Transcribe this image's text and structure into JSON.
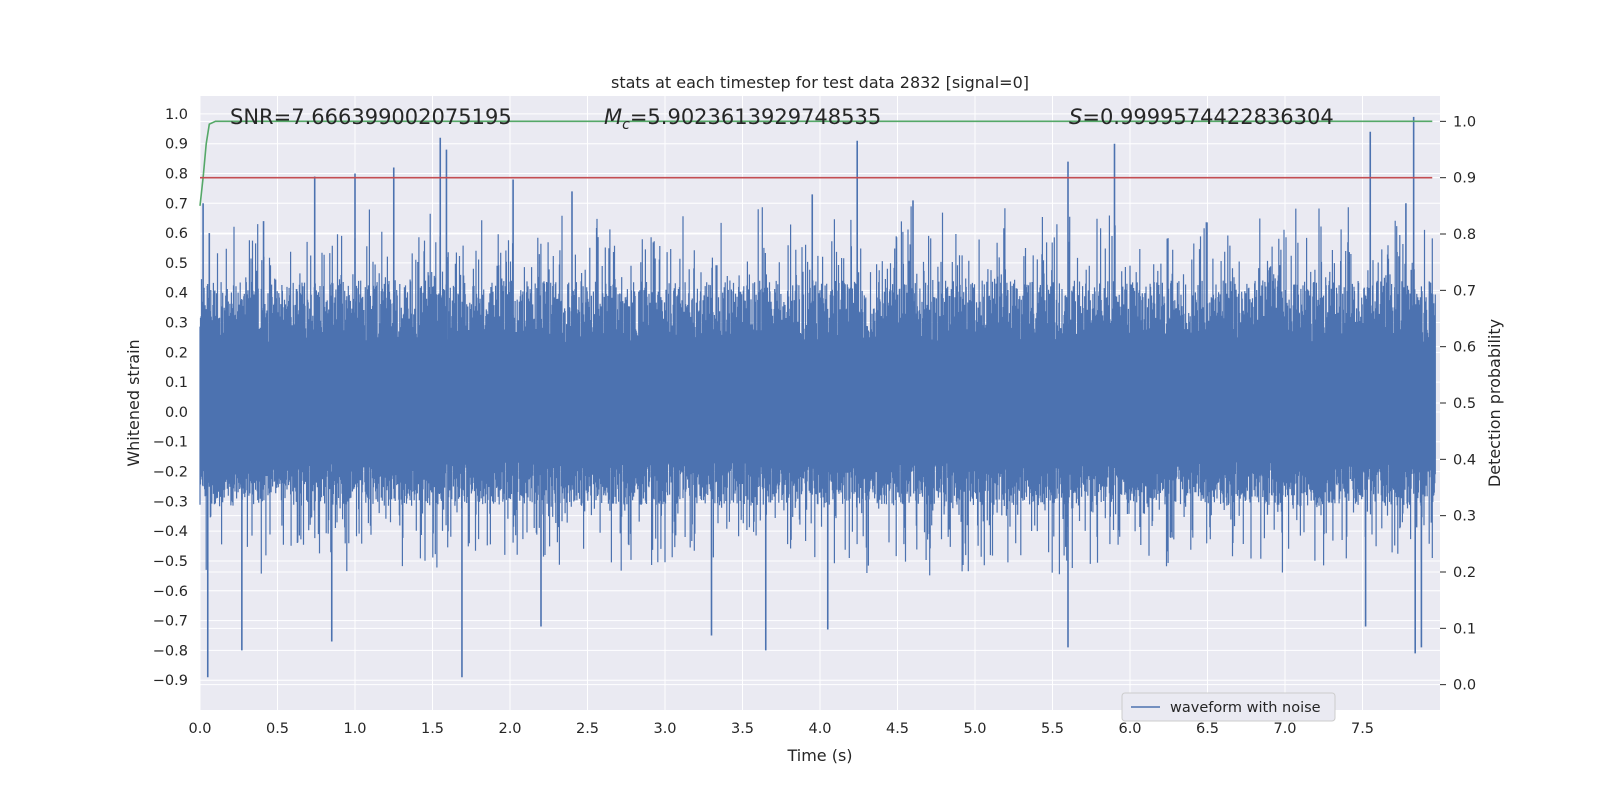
{
  "chart_data": {
    "type": "line",
    "title": "stats at each timestep for test data 2832 [signal=0]",
    "xlabel": "Time (s)",
    "ylabel": "Whitened strain",
    "y2label": "Detection probability",
    "xlim": [
      0.0,
      8.0
    ],
    "ylim": [
      -1.0,
      1.06
    ],
    "y2lim": [
      -0.045,
      1.045
    ],
    "xticks": [
      "0.0",
      "0.5",
      "1.0",
      "1.5",
      "2.0",
      "2.5",
      "3.0",
      "3.5",
      "4.0",
      "4.5",
      "5.0",
      "5.5",
      "6.0",
      "6.5",
      "7.0",
      "7.5"
    ],
    "yticks": [
      "−0.9",
      "−0.8",
      "−0.7",
      "−0.6",
      "−0.5",
      "−0.4",
      "−0.3",
      "−0.2",
      "−0.1",
      "0.0",
      "0.1",
      "0.2",
      "0.3",
      "0.4",
      "0.5",
      "0.6",
      "0.7",
      "0.8",
      "0.9",
      "1.0"
    ],
    "y2ticks": [
      "0.0",
      "0.1",
      "0.2",
      "0.3",
      "0.4",
      "0.5",
      "0.6",
      "0.7",
      "0.8",
      "0.9",
      "1.0"
    ],
    "annotations": {
      "snr": "SNR=7.666399002075195",
      "mc_symbol": "M",
      "mc_sub": "c",
      "mc_value": "=5.9023613929748535",
      "s_symbol": "S",
      "s_value": "=0.9999574422836304"
    },
    "legend": {
      "label": "waveform with noise",
      "placement": "lower right"
    },
    "grid": true,
    "colors": {
      "background": "#eaeaf2",
      "grid": "#ffffff",
      "waveform": "#4c72b0",
      "probability": "#55a868",
      "threshold": "#c44e52"
    },
    "series": [
      {
        "name": "waveform with noise",
        "axis": "left",
        "noise_envelope": {
          "upper": 0.42,
          "lower": -0.3
        },
        "spikes": [
          {
            "x": 0.02,
            "y": 0.7
          },
          {
            "x": 0.05,
            "y": -0.89
          },
          {
            "x": 0.06,
            "y": 0.6
          },
          {
            "x": 0.27,
            "y": -0.8
          },
          {
            "x": 0.41,
            "y": 0.64
          },
          {
            "x": 0.74,
            "y": 0.79
          },
          {
            "x": 0.85,
            "y": -0.77
          },
          {
            "x": 1.0,
            "y": 0.8
          },
          {
            "x": 1.25,
            "y": 0.82
          },
          {
            "x": 1.55,
            "y": 0.92
          },
          {
            "x": 1.59,
            "y": 0.88
          },
          {
            "x": 1.69,
            "y": -0.89
          },
          {
            "x": 2.02,
            "y": 0.78
          },
          {
            "x": 2.2,
            "y": -0.72
          },
          {
            "x": 2.4,
            "y": 0.74
          },
          {
            "x": 3.3,
            "y": -0.75
          },
          {
            "x": 3.65,
            "y": -0.8
          },
          {
            "x": 3.95,
            "y": 0.73
          },
          {
            "x": 4.05,
            "y": -0.73
          },
          {
            "x": 4.24,
            "y": 0.91
          },
          {
            "x": 4.6,
            "y": 0.71
          },
          {
            "x": 5.9,
            "y": 0.9
          },
          {
            "x": 5.6,
            "y": 0.84
          },
          {
            "x": 5.6,
            "y": -0.79
          },
          {
            "x": 7.55,
            "y": 0.94
          },
          {
            "x": 7.52,
            "y": -0.72
          },
          {
            "x": 7.78,
            "y": 0.7
          },
          {
            "x": 7.83,
            "y": 0.99
          },
          {
            "x": 7.84,
            "y": -0.81
          },
          {
            "x": 7.88,
            "y": -0.79
          }
        ]
      },
      {
        "name": "",
        "axis": "right",
        "x": [
          0.0,
          0.02,
          0.04,
          0.06,
          0.1,
          0.2,
          1.0,
          3.0,
          5.0,
          7.0,
          7.95
        ],
        "y": [
          0.85,
          0.9,
          0.96,
          0.995,
          1.0,
          1.0,
          1.0,
          1.0,
          1.0,
          1.0,
          1.0
        ]
      },
      {
        "name": "",
        "axis": "right",
        "x": [
          0.0,
          7.95
        ],
        "y": [
          0.9,
          0.9
        ]
      }
    ]
  }
}
